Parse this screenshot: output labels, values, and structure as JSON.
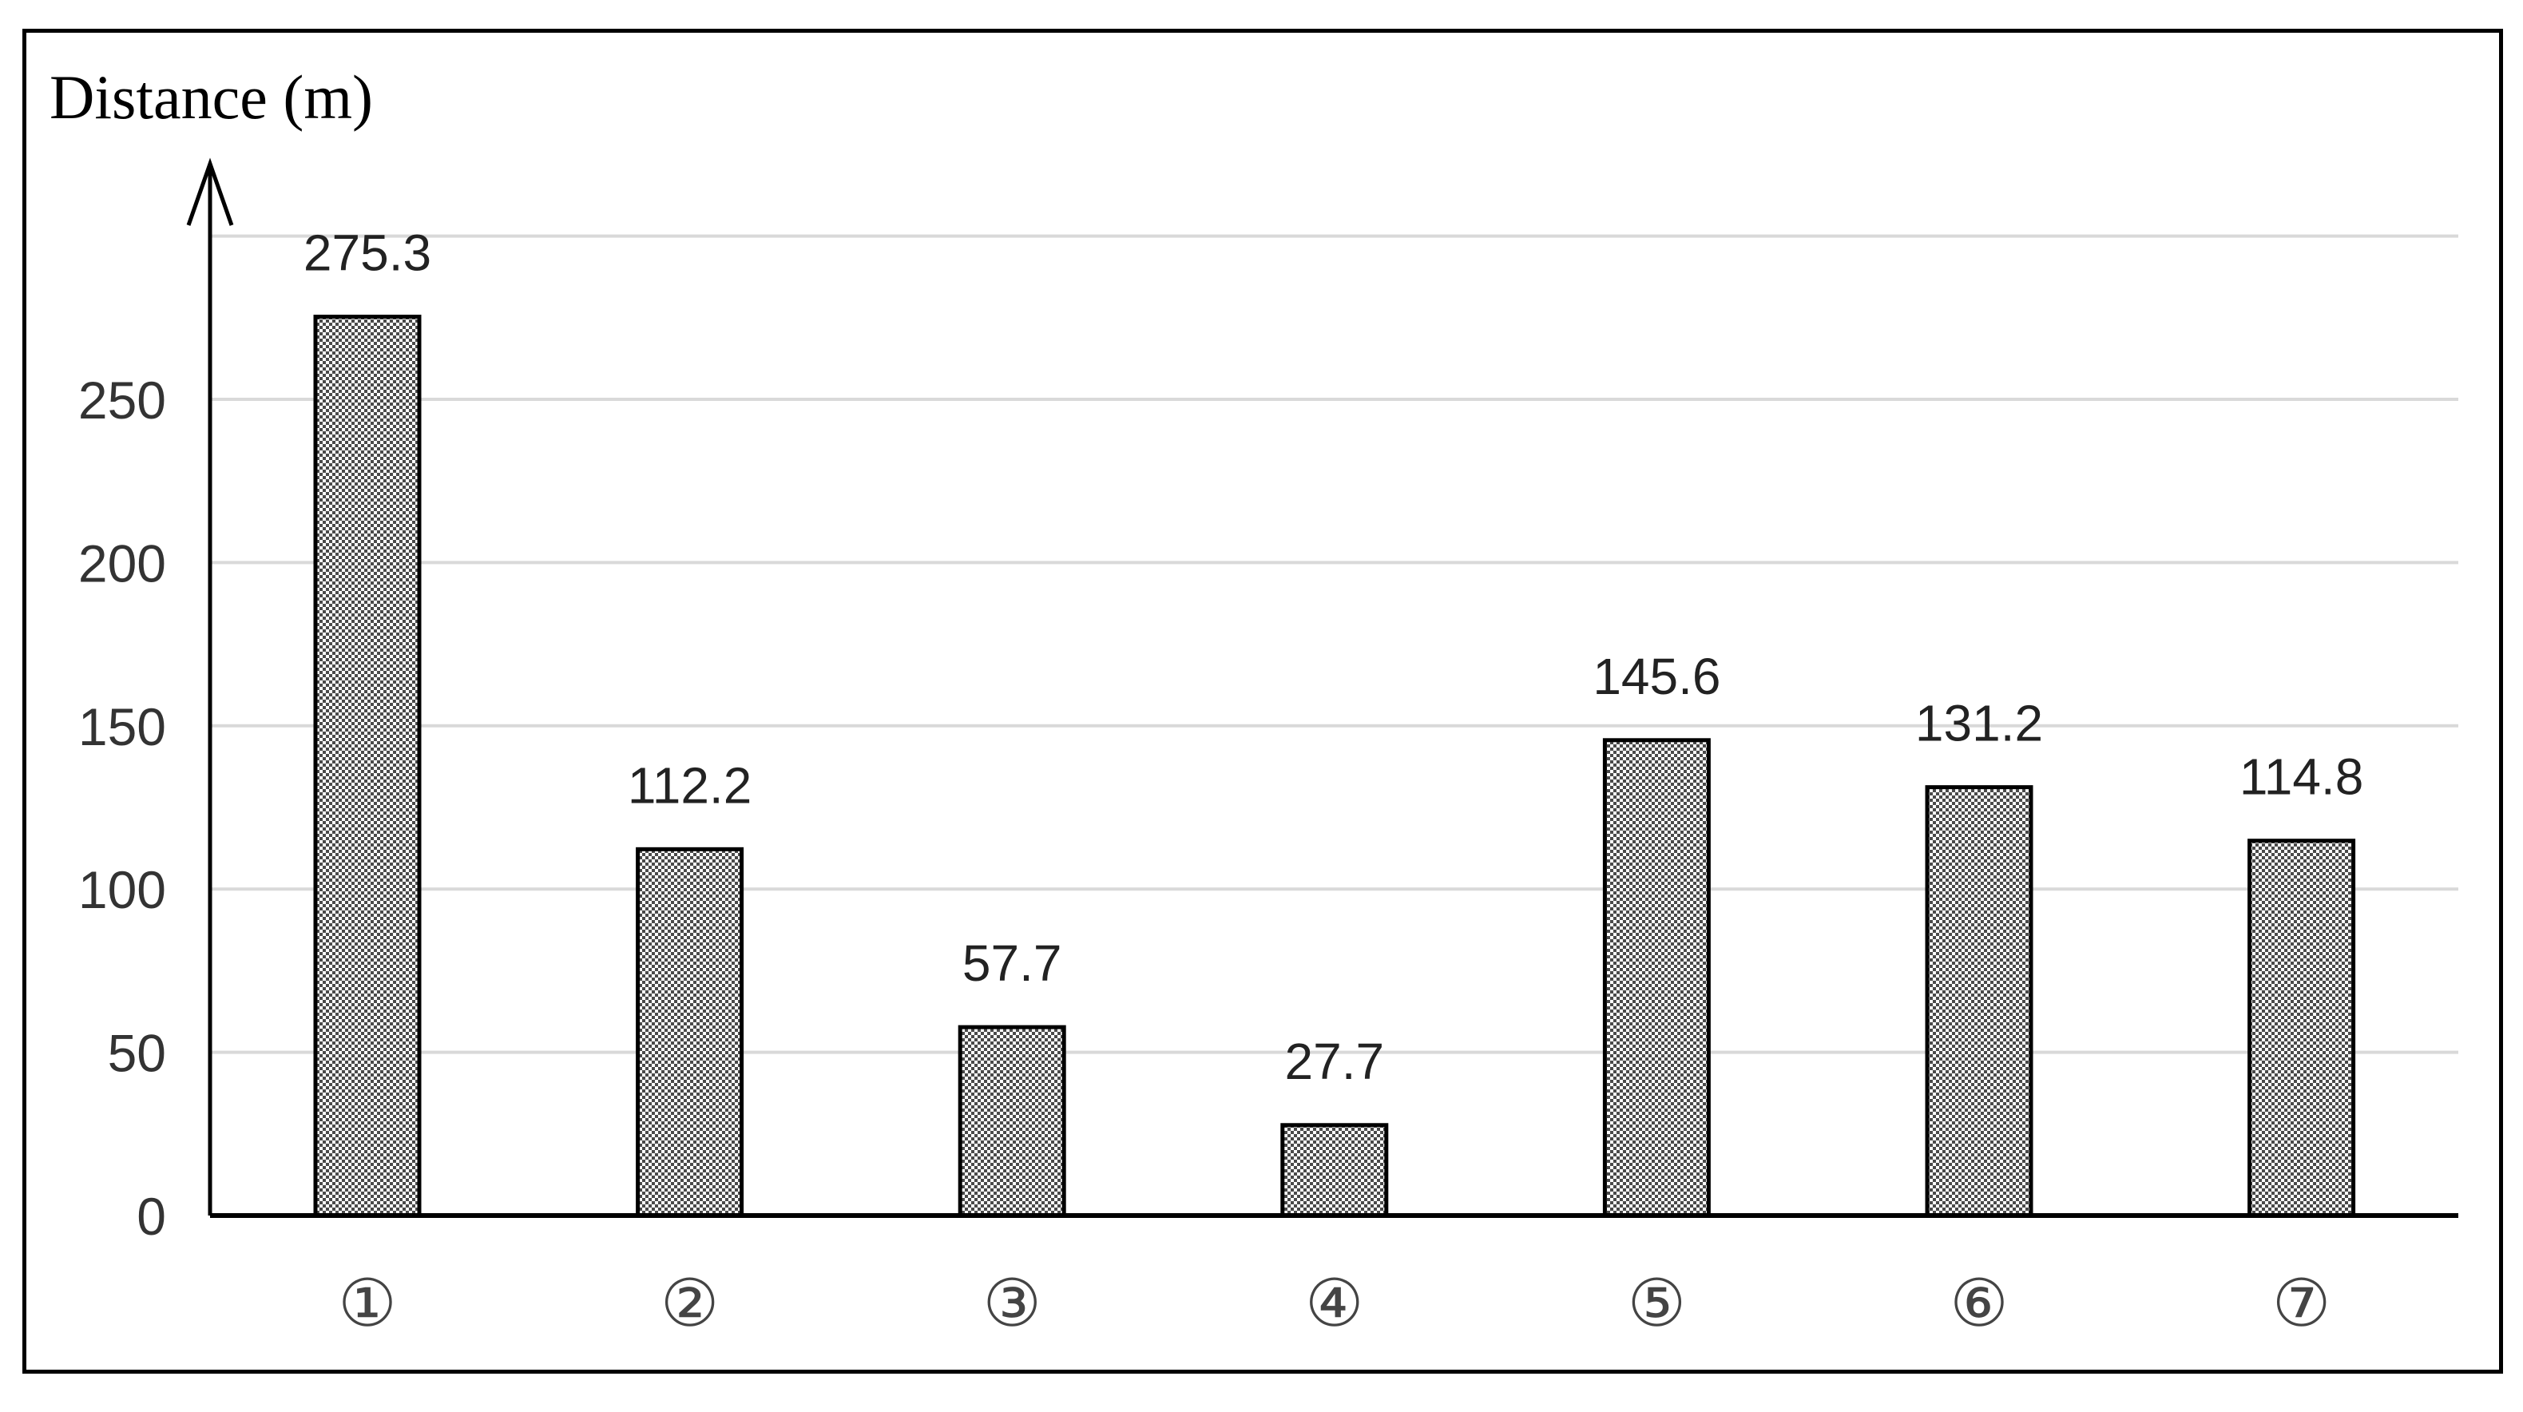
{
  "chart_data": {
    "type": "bar",
    "ylabel": "Distance (m)",
    "xlabel": "",
    "categories": [
      "①",
      "②",
      "③",
      "④",
      "⑤",
      "⑥",
      "⑦"
    ],
    "values": [
      275.3,
      112.2,
      57.7,
      27.7,
      145.6,
      131.2,
      114.8
    ],
    "value_labels": [
      "275.3",
      "112.2",
      "57.7",
      "27.7",
      "145.6",
      "131.2",
      "114.8"
    ],
    "ylim": [
      0,
      300
    ],
    "yticks": [
      0,
      50,
      100,
      150,
      200,
      250
    ],
    "ytick_labels": [
      "0",
      "50",
      "100",
      "150",
      "200",
      "250"
    ],
    "grid": "horizontal",
    "bar_fill": "crosshatch-gray",
    "grid_color": "#d9d9d9",
    "legend": "none"
  }
}
